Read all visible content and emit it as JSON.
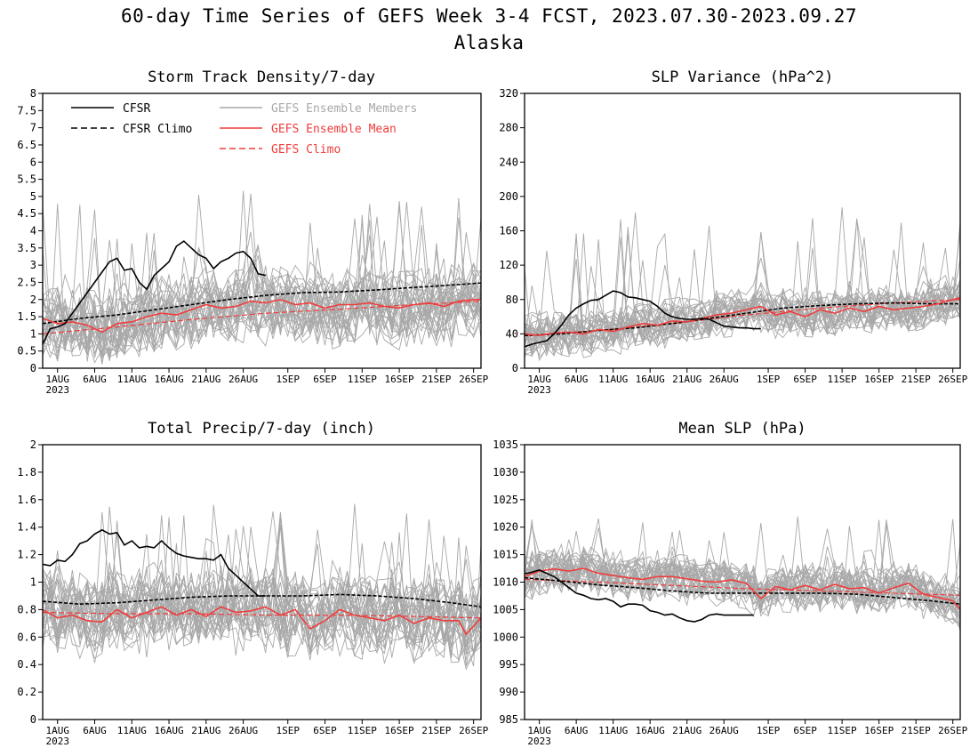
{
  "page": {
    "title_line1": "60-day Time Series of GEFS Week 3-4 FCST, 2023.07.30-2023.09.27",
    "title_line2": "Alaska"
  },
  "colors": {
    "cfsr": "#000000",
    "members": "#a8a8a8",
    "mean": "#f03c3c",
    "gefs_climo": "#f03c3c"
  },
  "legend": {
    "cfsr": "CFSR",
    "cfsr_climo": "CFSR Climo",
    "members": "GEFS Ensemble Members",
    "mean": "GEFS Ensemble Mean",
    "gefs_climo": "GEFS Climo"
  },
  "x_axis": {
    "day_range": [
      0,
      59
    ],
    "tick_days": [
      2,
      7,
      12,
      17,
      22,
      27,
      33,
      38,
      43,
      48,
      53,
      58
    ],
    "tick_labels": [
      "1AUG",
      "6AUG",
      "11AUG",
      "16AUG",
      "21AUG",
      "26AUG",
      "1SEP",
      "6SEP",
      "11SEP",
      "16SEP",
      "21SEP",
      "26SEP"
    ],
    "year_label": "2023",
    "start_date": "2023-07-30"
  },
  "chart_data": [
    {
      "id": "storm",
      "type": "line",
      "title": "Storm Track Density/7-day",
      "ylim": [
        0,
        8
      ],
      "yticks": [
        0,
        0.5,
        1,
        1.5,
        2,
        2.5,
        3,
        3.5,
        4,
        4.5,
        5,
        5.5,
        6,
        6.5,
        7,
        7.5,
        8
      ],
      "members": {
        "count": 30,
        "center": 1.75,
        "spread": 0.9,
        "max": 5.2
      },
      "series": [
        {
          "name": "CFSR",
          "style": "solid",
          "color": "#000000",
          "x": [
            0,
            1,
            2,
            3,
            4,
            5,
            6,
            7,
            8,
            9,
            10,
            11,
            12,
            13,
            14,
            15,
            16,
            17,
            18,
            19,
            20,
            21,
            22,
            23,
            24,
            25,
            26,
            27,
            28,
            29,
            30
          ],
          "y": [
            0.7,
            1.15,
            1.2,
            1.3,
            1.6,
            1.9,
            2.2,
            2.5,
            2.8,
            3.1,
            3.2,
            2.85,
            2.9,
            2.5,
            2.3,
            2.7,
            2.9,
            3.1,
            3.55,
            3.7,
            3.5,
            3.3,
            3.2,
            2.9,
            3.1,
            3.2,
            3.35,
            3.4,
            3.2,
            2.75,
            2.7
          ]
        },
        {
          "name": "CFSR Climo",
          "style": "dashed",
          "color": "#000000",
          "x": [
            0,
            5,
            10,
            15,
            20,
            25,
            30,
            35,
            40,
            45,
            50,
            55,
            59
          ],
          "y": [
            1.3,
            1.45,
            1.55,
            1.7,
            1.85,
            2.0,
            2.12,
            2.2,
            2.22,
            2.28,
            2.35,
            2.42,
            2.48
          ]
        },
        {
          "name": "GEFS Ensemble Mean",
          "style": "solid",
          "color": "#f03c3c",
          "x": [
            0,
            2,
            4,
            6,
            8,
            10,
            12,
            14,
            16,
            18,
            20,
            22,
            24,
            26,
            28,
            30,
            32,
            34,
            36,
            38,
            40,
            42,
            44,
            46,
            48,
            50,
            52,
            54,
            56,
            58,
            59
          ],
          "y": [
            1.45,
            1.3,
            1.35,
            1.25,
            1.05,
            1.3,
            1.35,
            1.5,
            1.6,
            1.55,
            1.7,
            1.85,
            1.75,
            1.8,
            1.95,
            1.9,
            2.0,
            1.85,
            1.9,
            1.75,
            1.85,
            1.85,
            1.9,
            1.8,
            1.75,
            1.85,
            1.9,
            1.8,
            1.95,
            2.0,
            2.0
          ]
        },
        {
          "name": "GEFS Climo",
          "style": "dashed",
          "color": "#f03c3c",
          "x": [
            0,
            10,
            20,
            30,
            40,
            50,
            59
          ],
          "y": [
            1.0,
            1.2,
            1.42,
            1.6,
            1.72,
            1.85,
            1.95
          ]
        }
      ]
    },
    {
      "id": "slpvar",
      "type": "line",
      "title": "SLP Variance (hPa^2)",
      "ylim": [
        0,
        320
      ],
      "yticks": [
        0,
        40,
        80,
        120,
        160,
        200,
        240,
        280,
        320
      ],
      "members": {
        "count": 30,
        "center": 62,
        "spread": 22,
        "max": 190
      },
      "series": [
        {
          "name": "CFSR",
          "style": "solid",
          "color": "#000000",
          "x": [
            0,
            1,
            2,
            3,
            4,
            5,
            6,
            7,
            8,
            9,
            10,
            11,
            12,
            13,
            14,
            15,
            16,
            17,
            18,
            19,
            20,
            21,
            22,
            23,
            24,
            25,
            26,
            27,
            28,
            29,
            30,
            31,
            32
          ],
          "y": [
            25,
            28,
            30,
            32,
            40,
            50,
            62,
            70,
            75,
            79,
            80,
            85,
            90,
            88,
            83,
            82,
            80,
            78,
            72,
            64,
            60,
            58,
            57,
            57,
            58,
            57,
            53,
            49,
            48,
            47,
            47,
            46,
            46
          ]
        },
        {
          "name": "CFSR Climo",
          "style": "dashed",
          "color": "#000000",
          "x": [
            0,
            5,
            10,
            15,
            20,
            25,
            30,
            35,
            40,
            45,
            50,
            55,
            59
          ],
          "y": [
            38,
            40,
            44,
            47,
            52,
            58,
            64,
            70,
            73,
            75,
            76,
            75,
            75
          ]
        },
        {
          "name": "GEFS Ensemble Mean",
          "style": "solid",
          "color": "#f03c3c",
          "x": [
            0,
            2,
            4,
            6,
            8,
            10,
            12,
            14,
            16,
            18,
            20,
            22,
            24,
            26,
            28,
            30,
            32,
            34,
            36,
            38,
            40,
            42,
            44,
            46,
            48,
            50,
            52,
            54,
            56,
            58,
            59
          ],
          "y": [
            40,
            38,
            41,
            42,
            40,
            45,
            43,
            48,
            52,
            50,
            55,
            54,
            58,
            62,
            64,
            68,
            72,
            62,
            66,
            60,
            68,
            64,
            70,
            66,
            72,
            68,
            70,
            72,
            75,
            80,
            82
          ]
        },
        {
          "name": "GEFS Climo",
          "style": "dashed",
          "color": "#f03c3c",
          "x": [
            0,
            10,
            20,
            30,
            40,
            50,
            59
          ],
          "y": [
            38,
            44,
            52,
            62,
            70,
            76,
            80
          ]
        }
      ]
    },
    {
      "id": "precip",
      "type": "line",
      "title": "Total Precip/7-day (inch)",
      "ylim": [
        0,
        2
      ],
      "yticks": [
        0,
        0.2,
        0.4,
        0.6,
        0.8,
        1,
        1.2,
        1.4,
        1.6,
        1.8,
        2
      ],
      "members": {
        "count": 30,
        "center": 0.78,
        "spread": 0.25,
        "max": 1.58
      },
      "series": [
        {
          "name": "CFSR",
          "style": "solid",
          "color": "#000000",
          "x": [
            0,
            1,
            2,
            3,
            4,
            5,
            6,
            7,
            8,
            9,
            10,
            11,
            12,
            13,
            14,
            15,
            16,
            17,
            18,
            19,
            20,
            21,
            22,
            23,
            24,
            25,
            26,
            27,
            28,
            29,
            30
          ],
          "y": [
            1.13,
            1.12,
            1.16,
            1.15,
            1.2,
            1.28,
            1.3,
            1.35,
            1.38,
            1.35,
            1.36,
            1.27,
            1.3,
            1.25,
            1.26,
            1.25,
            1.3,
            1.25,
            1.21,
            1.19,
            1.18,
            1.17,
            1.17,
            1.16,
            1.2,
            1.1,
            1.05,
            1.0,
            0.95,
            0.9,
            0.9
          ]
        },
        {
          "name": "CFSR Climo",
          "style": "dashed",
          "color": "#000000",
          "x": [
            0,
            5,
            10,
            15,
            20,
            25,
            30,
            35,
            40,
            45,
            50,
            55,
            59
          ],
          "y": [
            0.86,
            0.84,
            0.85,
            0.87,
            0.89,
            0.9,
            0.9,
            0.9,
            0.91,
            0.9,
            0.88,
            0.85,
            0.82
          ]
        },
        {
          "name": "GEFS Ensemble Mean",
          "style": "solid",
          "color": "#f03c3c",
          "x": [
            0,
            2,
            4,
            6,
            8,
            10,
            12,
            14,
            16,
            18,
            20,
            22,
            24,
            26,
            28,
            30,
            32,
            34,
            36,
            38,
            40,
            42,
            44,
            46,
            48,
            50,
            52,
            54,
            56,
            57,
            59
          ],
          "y": [
            0.8,
            0.74,
            0.76,
            0.72,
            0.71,
            0.8,
            0.74,
            0.78,
            0.82,
            0.76,
            0.8,
            0.75,
            0.82,
            0.78,
            0.79,
            0.82,
            0.76,
            0.8,
            0.66,
            0.72,
            0.8,
            0.76,
            0.74,
            0.72,
            0.76,
            0.7,
            0.74,
            0.72,
            0.72,
            0.62,
            0.74
          ]
        },
        {
          "name": "GEFS Climo",
          "style": "dashed",
          "color": "#f03c3c",
          "x": [
            0,
            10,
            20,
            30,
            40,
            50,
            59
          ],
          "y": [
            0.78,
            0.77,
            0.77,
            0.76,
            0.76,
            0.75,
            0.74
          ]
        }
      ]
    },
    {
      "id": "meanslp",
      "type": "line",
      "title": "Mean SLP (hPa)",
      "ylim": [
        985,
        1035
      ],
      "yticks": [
        985,
        990,
        995,
        1000,
        1005,
        1010,
        1015,
        1020,
        1025,
        1030,
        1035
      ],
      "members": {
        "count": 30,
        "center": 1009,
        "spread": 3.5,
        "max": 1022
      },
      "series": [
        {
          "name": "CFSR",
          "style": "solid",
          "color": "#000000",
          "x": [
            0,
            1,
            2,
            3,
            4,
            5,
            6,
            7,
            8,
            9,
            10,
            11,
            12,
            13,
            14,
            15,
            16,
            17,
            18,
            19,
            20,
            21,
            22,
            23,
            24,
            25,
            26,
            27,
            28,
            29,
            30,
            31
          ],
          "y": [
            1011.5,
            1011.8,
            1012.2,
            1011.6,
            1011.0,
            1010.0,
            1009.0,
            1008.0,
            1007.6,
            1007.0,
            1006.8,
            1007.0,
            1006.5,
            1005.5,
            1006.0,
            1006.0,
            1005.8,
            1004.8,
            1004.5,
            1004.0,
            1004.2,
            1003.5,
            1003.0,
            1002.8,
            1003.2,
            1004.0,
            1004.2,
            1004.0,
            1004.0,
            1004.0,
            1004.0,
            1004.0
          ]
        },
        {
          "name": "CFSR Climo",
          "style": "dashed",
          "color": "#000000",
          "x": [
            0,
            5,
            10,
            15,
            20,
            25,
            30,
            35,
            40,
            45,
            50,
            55,
            59
          ],
          "y": [
            1010.8,
            1010.2,
            1009.5,
            1009.0,
            1008.4,
            1008.0,
            1008.0,
            1008.0,
            1008.0,
            1007.8,
            1007.2,
            1006.6,
            1006.0
          ]
        },
        {
          "name": "GEFS Ensemble Mean",
          "style": "solid",
          "color": "#f03c3c",
          "x": [
            0,
            2,
            4,
            6,
            8,
            10,
            12,
            14,
            16,
            18,
            20,
            22,
            24,
            26,
            28,
            30,
            32,
            34,
            36,
            38,
            40,
            42,
            44,
            46,
            48,
            50,
            52,
            54,
            56,
            58,
            59
          ],
          "y": [
            1011.0,
            1012.0,
            1012.4,
            1012.0,
            1012.5,
            1011.6,
            1011.2,
            1010.8,
            1010.5,
            1011.0,
            1011.0,
            1010.6,
            1010.2,
            1010.0,
            1010.4,
            1009.8,
            1007.0,
            1009.2,
            1008.6,
            1009.4,
            1008.6,
            1009.6,
            1008.8,
            1009.0,
            1008.0,
            1009.0,
            1009.8,
            1007.8,
            1007.2,
            1006.6,
            1005.0
          ]
        },
        {
          "name": "GEFS Climo",
          "style": "dashed",
          "color": "#f03c3c",
          "x": [
            0,
            10,
            20,
            30,
            40,
            50,
            59
          ],
          "y": [
            1010.5,
            1010.0,
            1009.4,
            1008.8,
            1008.4,
            1008.0,
            1007.6
          ]
        }
      ]
    }
  ]
}
